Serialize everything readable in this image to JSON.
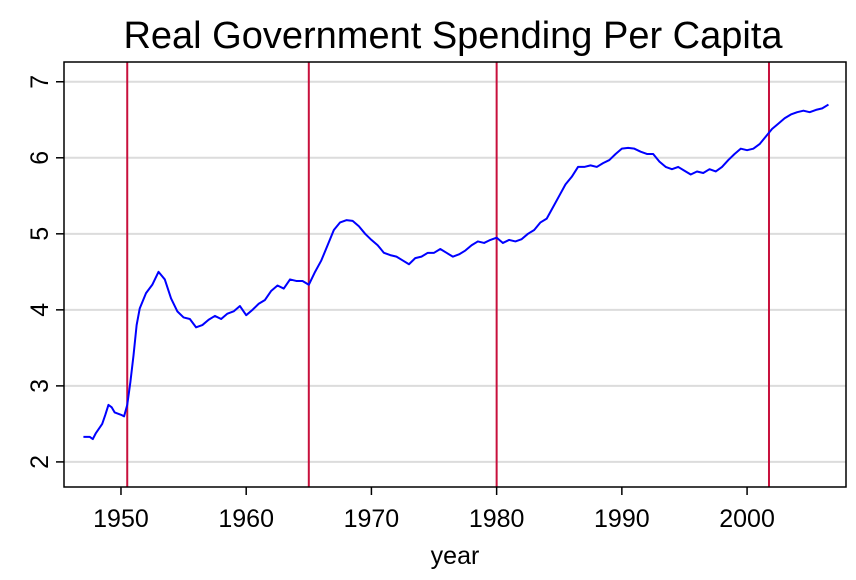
{
  "chart_data": {
    "type": "line",
    "title": "Real Government Spending Per Capita",
    "x_label": "year",
    "x": [
      1947.0,
      1947.5,
      1947.75,
      1948.0,
      1948.5,
      1948.75,
      1949.0,
      1949.25,
      1949.5,
      1950.0,
      1950.25,
      1950.5,
      1950.75,
      1951.0,
      1951.25,
      1951.5,
      1952.0,
      1952.5,
      1953.0,
      1953.25,
      1953.5,
      1954.0,
      1954.5,
      1955.0,
      1955.5,
      1956.0,
      1956.5,
      1957.0,
      1957.5,
      1958.0,
      1958.5,
      1959.0,
      1959.5,
      1960.0,
      1960.5,
      1961.0,
      1961.5,
      1962.0,
      1962.5,
      1963.0,
      1963.5,
      1964.0,
      1964.5,
      1965.0,
      1965.5,
      1966.0,
      1966.5,
      1967.0,
      1967.5,
      1968.0,
      1968.5,
      1969.0,
      1969.5,
      1970.0,
      1970.5,
      1971.0,
      1971.5,
      1972.0,
      1972.5,
      1973.0,
      1973.5,
      1974.0,
      1974.5,
      1975.0,
      1975.5,
      1976.0,
      1976.5,
      1977.0,
      1977.5,
      1978.0,
      1978.5,
      1979.0,
      1979.5,
      1980.0,
      1980.5,
      1981.0,
      1981.5,
      1982.0,
      1982.5,
      1983.0,
      1983.5,
      1984.0,
      1984.5,
      1985.0,
      1985.5,
      1986.0,
      1986.5,
      1987.0,
      1987.5,
      1988.0,
      1988.5,
      1989.0,
      1989.5,
      1990.0,
      1990.5,
      1991.0,
      1991.5,
      1992.0,
      1992.5,
      1993.0,
      1993.5,
      1994.0,
      1994.5,
      1995.0,
      1995.5,
      1996.0,
      1996.5,
      1997.0,
      1997.5,
      1998.0,
      1998.5,
      1999.0,
      1999.5,
      2000.0,
      2000.5,
      2001.0,
      2001.5,
      2002.0,
      2002.5,
      2003.0,
      2003.5,
      2004.0,
      2004.5,
      2005.0,
      2005.5,
      2006.0,
      2006.5
    ],
    "series": [
      {
        "color": "#0000ff",
        "values": [
          2.33,
          2.33,
          2.3,
          2.38,
          2.5,
          2.62,
          2.75,
          2.72,
          2.65,
          2.62,
          2.6,
          2.75,
          3.05,
          3.4,
          3.8,
          4.02,
          4.22,
          4.33,
          4.5,
          4.45,
          4.4,
          4.15,
          3.98,
          3.9,
          3.88,
          3.77,
          3.8,
          3.87,
          3.92,
          3.88,
          3.95,
          3.98,
          4.05,
          3.93,
          4.0,
          4.08,
          4.13,
          4.25,
          4.32,
          4.28,
          4.4,
          4.38,
          4.38,
          4.33,
          4.5,
          4.65,
          4.85,
          5.05,
          5.15,
          5.18,
          5.17,
          5.1,
          5.0,
          4.92,
          4.85,
          4.75,
          4.72,
          4.7,
          4.65,
          4.6,
          4.68,
          4.7,
          4.75,
          4.75,
          4.8,
          4.75,
          4.7,
          4.73,
          4.78,
          4.85,
          4.9,
          4.88,
          4.92,
          4.95,
          4.88,
          4.92,
          4.9,
          4.93,
          5.0,
          5.05,
          5.15,
          5.2,
          5.35,
          5.5,
          5.65,
          5.75,
          5.88,
          5.88,
          5.9,
          5.88,
          5.93,
          5.97,
          6.05,
          6.12,
          6.13,
          6.12,
          6.08,
          6.05,
          6.05,
          5.95,
          5.88,
          5.85,
          5.88,
          5.83,
          5.78,
          5.82,
          5.8,
          5.85,
          5.82,
          5.88,
          5.97,
          6.05,
          6.12,
          6.1,
          6.12,
          6.18,
          6.28,
          6.38,
          6.45,
          6.52,
          6.57,
          6.6,
          6.62,
          6.6,
          6.63,
          6.65,
          6.7
        ]
      }
    ],
    "vlines": [
      1950.5,
      1965,
      1980,
      2001.75
    ],
    "vline_color": "#c8103c",
    "xlim": [
      1945.45,
      2007.9
    ],
    "xticks": [
      1950,
      1960,
      1970,
      1980,
      1990,
      2000
    ],
    "ylim": [
      1.67,
      7.26
    ],
    "yticks": [
      2,
      3,
      4,
      5,
      6,
      7
    ],
    "grid": true
  }
}
